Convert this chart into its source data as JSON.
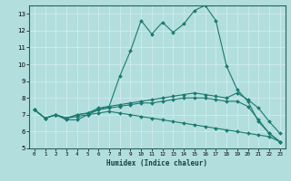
{
  "xlabel": "Humidex (Indice chaleur)",
  "ylabel": "",
  "background_color": "#b2dede",
  "grid_color": "#d0ecec",
  "line_color": "#1a7a6e",
  "xlim": [
    -0.5,
    23.5
  ],
  "ylim": [
    5,
    13.5
  ],
  "x_ticks": [
    0,
    1,
    2,
    3,
    4,
    5,
    6,
    7,
    8,
    9,
    10,
    11,
    12,
    13,
    14,
    15,
    16,
    17,
    18,
    19,
    20,
    21,
    22,
    23
  ],
  "y_ticks": [
    5,
    6,
    7,
    8,
    9,
    10,
    11,
    12,
    13
  ],
  "series": [
    {
      "x": [
        0,
        1,
        2,
        3,
        4,
        5,
        6,
        7,
        8,
        9,
        10,
        11,
        12,
        13,
        14,
        15,
        16,
        17,
        18,
        19,
        20,
        21,
        22,
        23
      ],
      "y": [
        7.3,
        6.8,
        7.0,
        6.7,
        6.7,
        7.0,
        7.3,
        7.5,
        9.3,
        10.8,
        12.6,
        11.8,
        12.5,
        11.9,
        12.4,
        13.2,
        13.5,
        12.6,
        9.9,
        8.5,
        7.8,
        6.6,
        5.9,
        5.4
      ]
    },
    {
      "x": [
        0,
        1,
        2,
        3,
        4,
        5,
        6,
        7,
        8,
        9,
        10,
        11,
        12,
        13,
        14,
        15,
        16,
        17,
        18,
        19,
        20,
        21,
        22,
        23
      ],
      "y": [
        7.3,
        6.8,
        7.0,
        6.8,
        7.0,
        7.1,
        7.4,
        7.5,
        7.6,
        7.7,
        7.8,
        7.9,
        8.0,
        8.1,
        8.2,
        8.3,
        8.2,
        8.1,
        8.0,
        8.3,
        7.9,
        7.4,
        6.6,
        5.9
      ]
    },
    {
      "x": [
        0,
        1,
        2,
        3,
        4,
        5,
        6,
        7,
        8,
        9,
        10,
        11,
        12,
        13,
        14,
        15,
        16,
        17,
        18,
        19,
        20,
        21,
        22,
        23
      ],
      "y": [
        7.3,
        6.8,
        7.0,
        6.8,
        7.0,
        7.1,
        7.3,
        7.4,
        7.5,
        7.6,
        7.7,
        7.7,
        7.8,
        7.9,
        8.0,
        8.0,
        8.0,
        7.9,
        7.8,
        7.8,
        7.5,
        6.7,
        5.9,
        5.4
      ]
    },
    {
      "x": [
        0,
        1,
        2,
        3,
        4,
        5,
        6,
        7,
        8,
        9,
        10,
        11,
        12,
        13,
        14,
        15,
        16,
        17,
        18,
        19,
        20,
        21,
        22,
        23
      ],
      "y": [
        7.3,
        6.8,
        7.0,
        6.8,
        6.9,
        7.0,
        7.1,
        7.2,
        7.1,
        7.0,
        6.9,
        6.8,
        6.7,
        6.6,
        6.5,
        6.4,
        6.3,
        6.2,
        6.1,
        6.0,
        5.9,
        5.8,
        5.7,
        5.4
      ]
    }
  ]
}
